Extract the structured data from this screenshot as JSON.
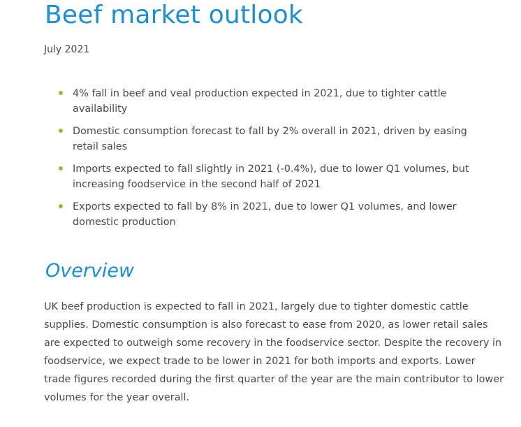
{
  "header": {
    "title": "Beef market outlook",
    "date": "July 2021"
  },
  "highlights": {
    "bullet_color": "#8cbf3f",
    "items": [
      "4% fall in beef and veal production expected in 2021, due to tighter cattle availability",
      "Domestic consumption forecast to fall by 2% overall in 2021, driven by easing retail sales",
      "Imports expected to fall slightly in 2021 (-0.4%), due to lower Q1 volumes, but increasing foodservice in the second half of 2021",
      "Exports expected to fall by 8% in 2021, due to lower Q1 volumes, and lower domestic production"
    ]
  },
  "overview": {
    "heading": "Overview",
    "body": "UK beef production is expected to fall in 2021, largely due to tighter domestic cattle supplies. Domestic consumption is also forecast to ease from 2020, as lower retail sales are expected to outweigh some recovery in the foodservice sector. Despite the recovery in foodservice, we expect trade to be lower in 2021 for both imports and exports. Lower trade figures recorded during the first quarter of the year are the main contributor to lower volumes for the year overall."
  },
  "colors": {
    "accent": "#1a8fd6",
    "text": "#4a4a4a",
    "bullet": "#8cbf3f"
  }
}
